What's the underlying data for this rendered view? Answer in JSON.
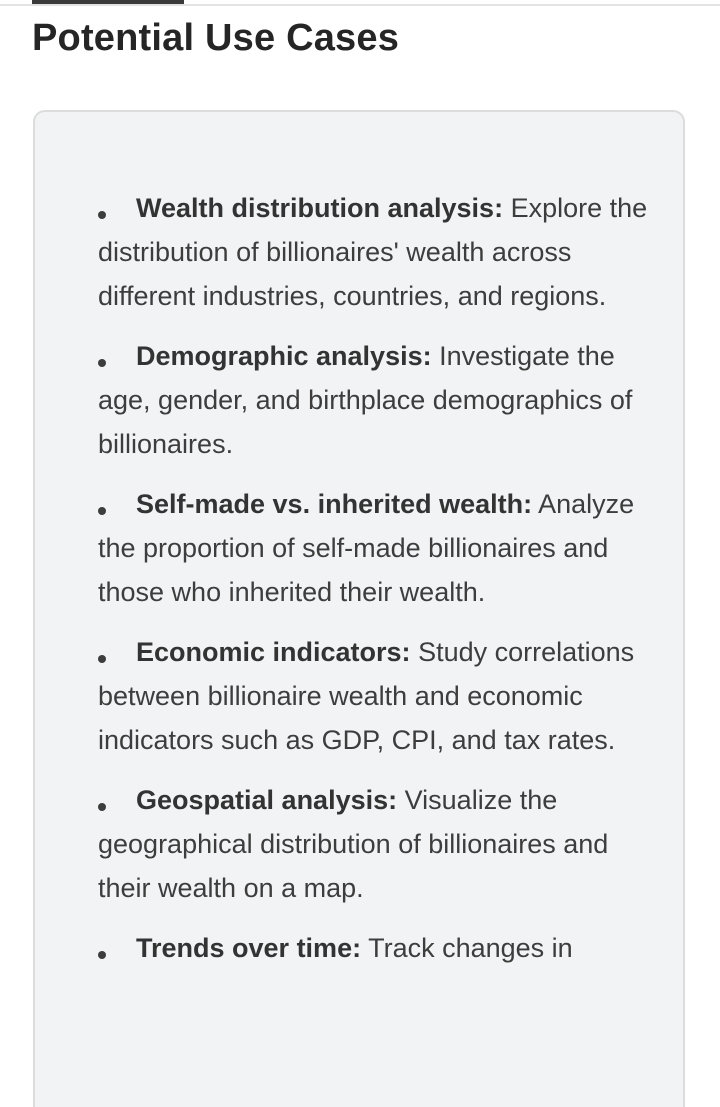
{
  "page": {
    "title": "Potential Use Cases"
  },
  "use_cases": [
    {
      "title": "Wealth distribution analysis:",
      "description": "Explore the distribution of billionaires' wealth across different industries, countries, and regions."
    },
    {
      "title": "Demographic analysis:",
      "description": "Investigate the age, gender, and birthplace demographics of billionaires."
    },
    {
      "title": "Self-made vs. inherited wealth:",
      "description": "Analyze the proportion of self-made billionaires and those who inherited their wealth."
    },
    {
      "title": "Economic indicators:",
      "description": "Study correlations between billionaire wealth and economic indicators such as GDP, CPI, and tax rates."
    },
    {
      "title": "Geospatial analysis:",
      "description": "Visualize the geographical distribution of billionaires and their wealth on a map."
    },
    {
      "title": "Trends over time:",
      "description": "Track changes in"
    }
  ]
}
